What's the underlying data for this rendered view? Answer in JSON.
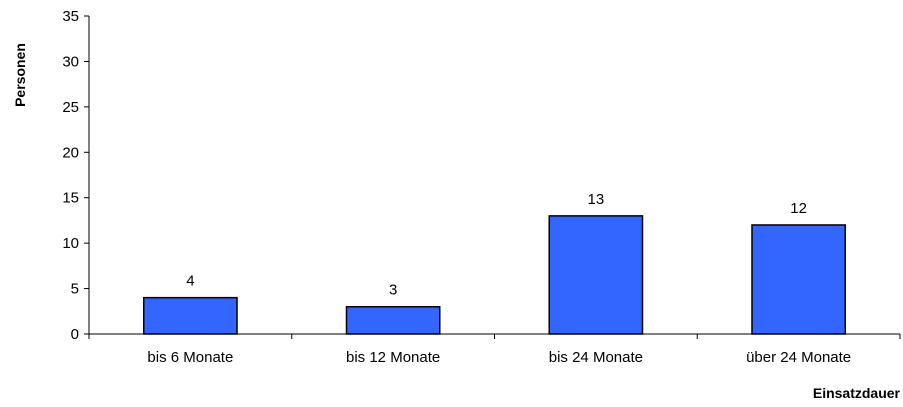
{
  "chart_data": {
    "type": "bar",
    "categories": [
      "bis 6 Monate",
      "bis 12 Monate",
      "bis 24 Monate",
      "über 24 Monate"
    ],
    "values": [
      4,
      3,
      13,
      12
    ],
    "data_labels": [
      "4",
      "3",
      "13",
      "12"
    ],
    "title": "",
    "xlabel": "Einsatzdauer",
    "ylabel": "Personen",
    "ylim": [
      0,
      35
    ],
    "yticks": [
      0,
      5,
      10,
      15,
      20,
      25,
      30,
      35
    ],
    "grid": false,
    "legend": "none",
    "bar_color": "#3366FF",
    "bar_edge_color": "#000000"
  }
}
